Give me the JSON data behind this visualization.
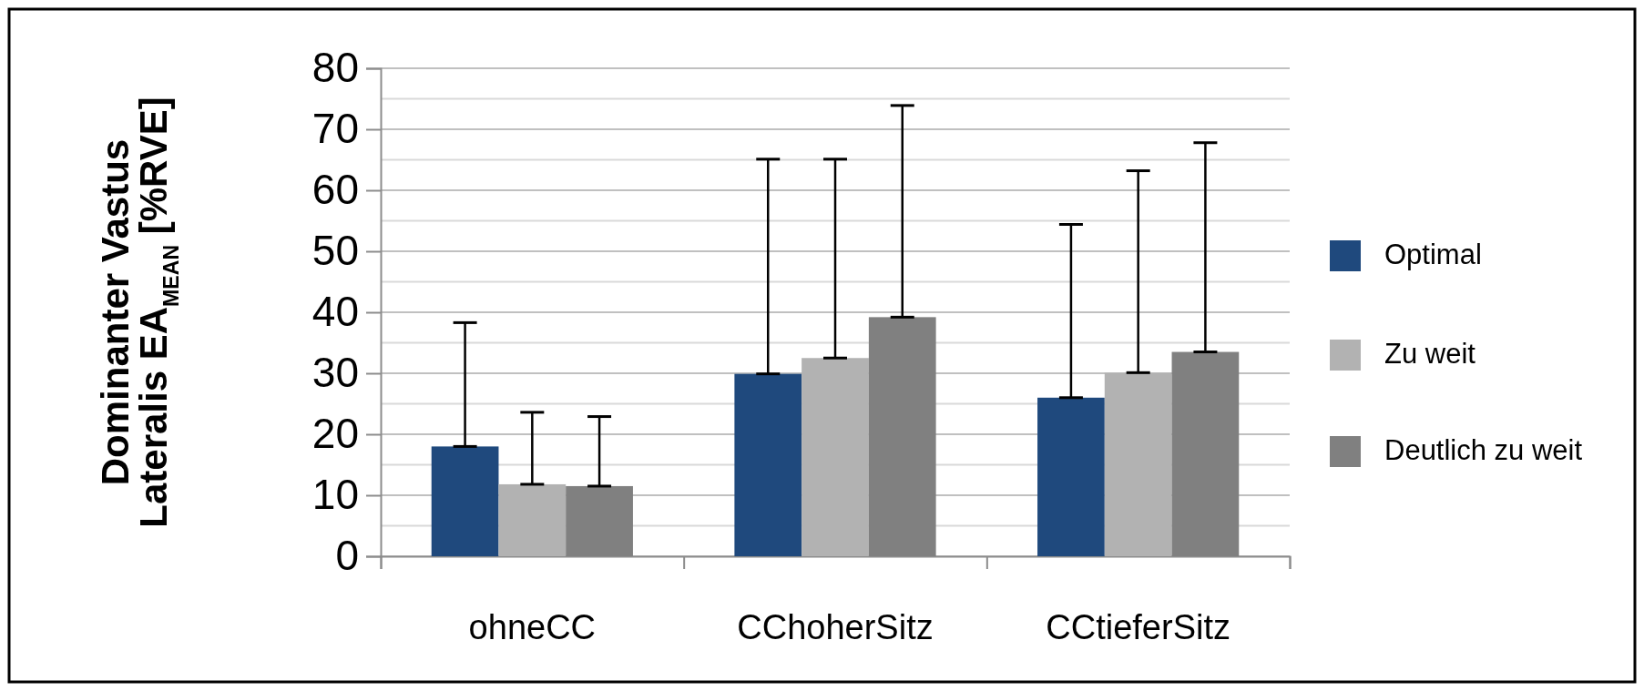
{
  "chart_data": {
    "type": "bar",
    "ylabel": "Dominanter Vastus Lateralis EA$_{MEAN}$ [%RVE]",
    "categories": [
      "ohneCC",
      "CChoherSitz",
      "CCtieferSitz"
    ],
    "series": [
      {
        "name": "Optimal",
        "color": "#1f497d",
        "values": [
          18.0,
          29.9,
          26.0
        ],
        "errors": [
          [
            18.0,
            38.3
          ],
          [
            29.9,
            65.1
          ],
          [
            26.0,
            54.4
          ]
        ]
      },
      {
        "name": "Zu weit",
        "color": "#b2b2b2",
        "values": [
          11.8,
          32.5,
          30.1
        ],
        "errors": [
          [
            11.8,
            23.6
          ],
          [
            32.5,
            65.1
          ],
          [
            30.1,
            63.2
          ]
        ]
      },
      {
        "name": "Deutlich zu weit",
        "color": "#808080",
        "values": [
          11.5,
          39.2,
          33.5
        ],
        "errors": [
          [
            11.5,
            22.9
          ],
          [
            39.2,
            73.9
          ],
          [
            33.5,
            67.8
          ]
        ]
      }
    ],
    "ylim": [
      0,
      80
    ],
    "yticks": [
      0,
      10,
      20,
      30,
      40,
      50,
      60,
      70,
      80
    ],
    "grid": "y",
    "legend": "right"
  }
}
